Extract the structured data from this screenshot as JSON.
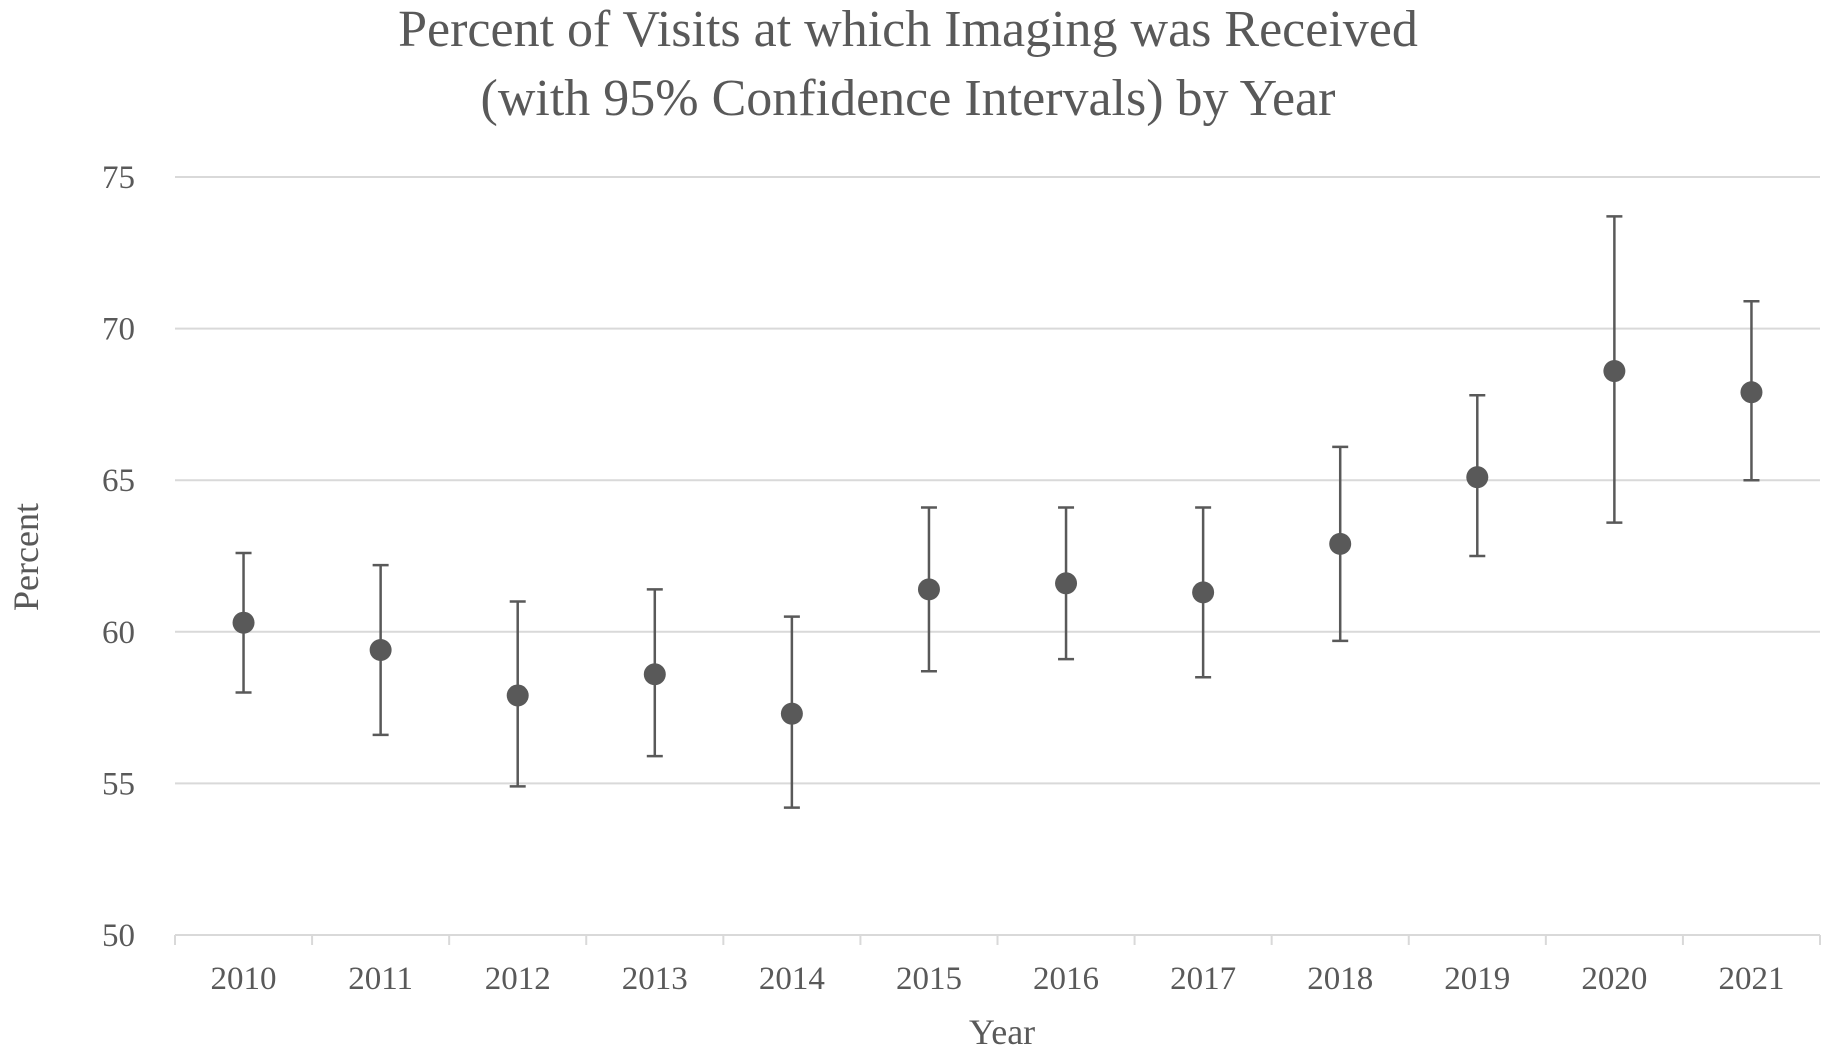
{
  "chart_data": {
    "type": "scatter",
    "title_lines": [
      "Percent of Visits at which Imaging was Received",
      "(with 95% Confidence Intervals) by Year"
    ],
    "xlabel": "Year",
    "ylabel": "Percent",
    "categories": [
      "2010",
      "2011",
      "2012",
      "2013",
      "2014",
      "2015",
      "2016",
      "2017",
      "2018",
      "2019",
      "2020",
      "2021"
    ],
    "values": [
      60.3,
      59.4,
      57.9,
      58.6,
      57.3,
      61.4,
      61.6,
      61.3,
      62.9,
      65.1,
      68.6,
      67.9
    ],
    "ci_lower": [
      58.0,
      56.6,
      54.9,
      55.9,
      54.2,
      58.7,
      59.1,
      58.5,
      59.7,
      62.5,
      63.6,
      65.0
    ],
    "ci_upper": [
      62.6,
      62.2,
      61.0,
      61.4,
      60.5,
      64.1,
      64.1,
      64.1,
      66.1,
      67.8,
      73.7,
      70.9
    ],
    "ylim": [
      50,
      75
    ],
    "yticks": [
      50,
      55,
      60,
      65,
      70,
      75
    ],
    "grid": true,
    "marker_color": "#595959",
    "grid_color": "#d9d9d9",
    "text_color": "#595959"
  }
}
